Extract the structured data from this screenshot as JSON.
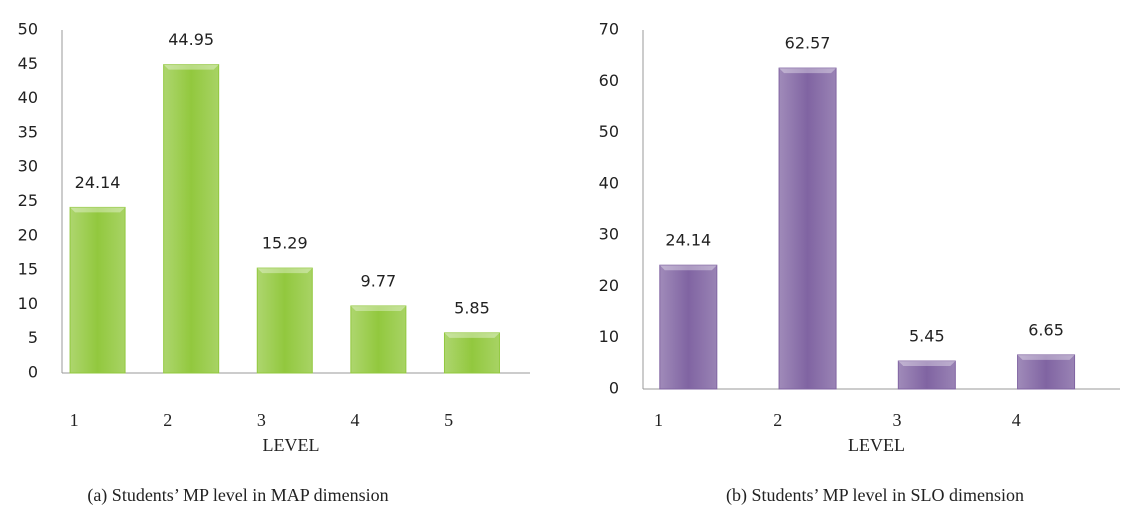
{
  "chart_data": [
    {
      "type": "bar",
      "categories": [
        "1",
        "2",
        "3",
        "4",
        "5"
      ],
      "values": [
        24.14,
        44.95,
        15.29,
        9.77,
        5.85
      ],
      "color": "#92c83e",
      "x_label": "LEVEL",
      "caption": "(a) Students’ MP level in MAP dimension",
      "ylim": [
        0,
        50
      ],
      "yticks": [
        0,
        5,
        10,
        15,
        20,
        25,
        30,
        35,
        40,
        45,
        50
      ]
    },
    {
      "type": "bar",
      "categories": [
        "1",
        "2",
        "3",
        "4"
      ],
      "values": [
        24.14,
        62.57,
        5.45,
        6.65
      ],
      "color": "#8064a2",
      "x_label": "LEVEL",
      "caption": "(b) Students’ MP level in SLO dimension",
      "ylim": [
        0,
        70
      ],
      "yticks": [
        0,
        10,
        20,
        30,
        40,
        50,
        60,
        70
      ]
    }
  ]
}
